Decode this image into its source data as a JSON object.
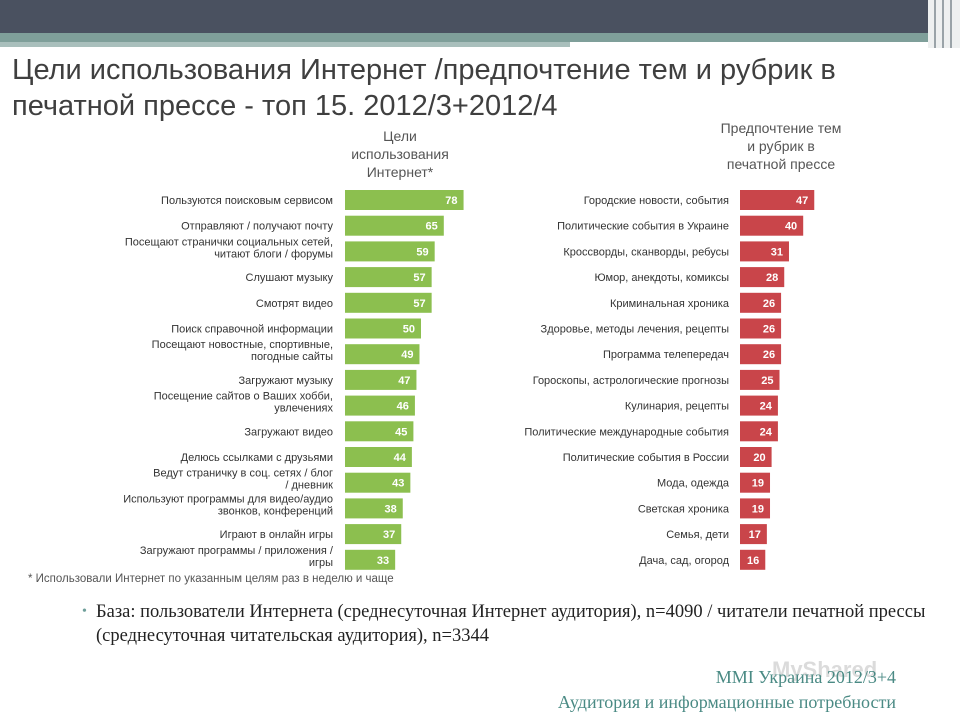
{
  "slide": {
    "title": "Цели использования Интернет /предпочтение тем и рубрик в печатной прессе - топ 15. 2012/3+2012/4",
    "left_heading": "Цели\nиспользования\nИнтернет*",
    "right_heading": "Предпочтение тем\nи рубрик в\nпечатной прессе",
    "footnote": "* Использовали Интернет по указанным целям раз в неделю и чаще",
    "base_note": "База: пользователи Интернета (среднесуточная Интернет аудитория), n=4090 / читатели печатной прессы (среднесуточная читательская аудитория), n=3344",
    "footer_line1": "MMI Украина 2012/3+4",
    "footer_line2": "Аудитория и информационные потребности",
    "watermark": "MyShared"
  },
  "colors": {
    "left_bar": "#8cbf4f",
    "right_bar": "#c9454a",
    "header_dark": "#4a5160",
    "accent_teal": "#4a8a84"
  },
  "chart_data": [
    {
      "type": "bar",
      "orientation": "horizontal",
      "title": "Цели использования Интернет*",
      "categories": [
        "Пользуются поисковым сервисом",
        "Отправляют / получают почту",
        "Посещают странички социальных сетей, читают блоги / форумы",
        "Слушают музыку",
        "Смотрят видео",
        "Поиск справочной информации",
        "Посещают новостные, спортивные, погодные сайты",
        "Загружают музыку",
        "Посещение сайтов о Ваших хобби, увлечениях",
        "Загружают видео",
        "Делюсь ссылками с друзьями",
        "Ведут страничку в соц. сетях / блог / дневник",
        "Используют программы для видео/аудио звонков, конференций",
        "Играют в онлайн игры",
        "Загружают программы / приложения / игры"
      ],
      "values": [
        78,
        65,
        59,
        57,
        57,
        50,
        49,
        47,
        46,
        45,
        44,
        43,
        38,
        37,
        33
      ]
    },
    {
      "type": "bar",
      "orientation": "horizontal",
      "title": "Предпочтение тем и рубрик в печатной прессе",
      "categories": [
        "Городские новости, события",
        "Политические события в Украине",
        "Кроссворды, сканворды, ребусы",
        "Юмор, анекдоты, комиксы",
        "Криминальная хроника",
        "Здоровье, методы лечения, рецепты",
        "Программа телепередач",
        "Гороскопы, астрологические прогнозы",
        "Кулинария, рецепты",
        "Политические международные события",
        "Политические события в России",
        "Мода, одежда",
        "Светская хроника",
        "Семья, дети",
        "Дача, сад, огород"
      ],
      "values": [
        47,
        40,
        31,
        28,
        26,
        26,
        26,
        25,
        24,
        24,
        20,
        19,
        19,
        17,
        16
      ]
    }
  ]
}
